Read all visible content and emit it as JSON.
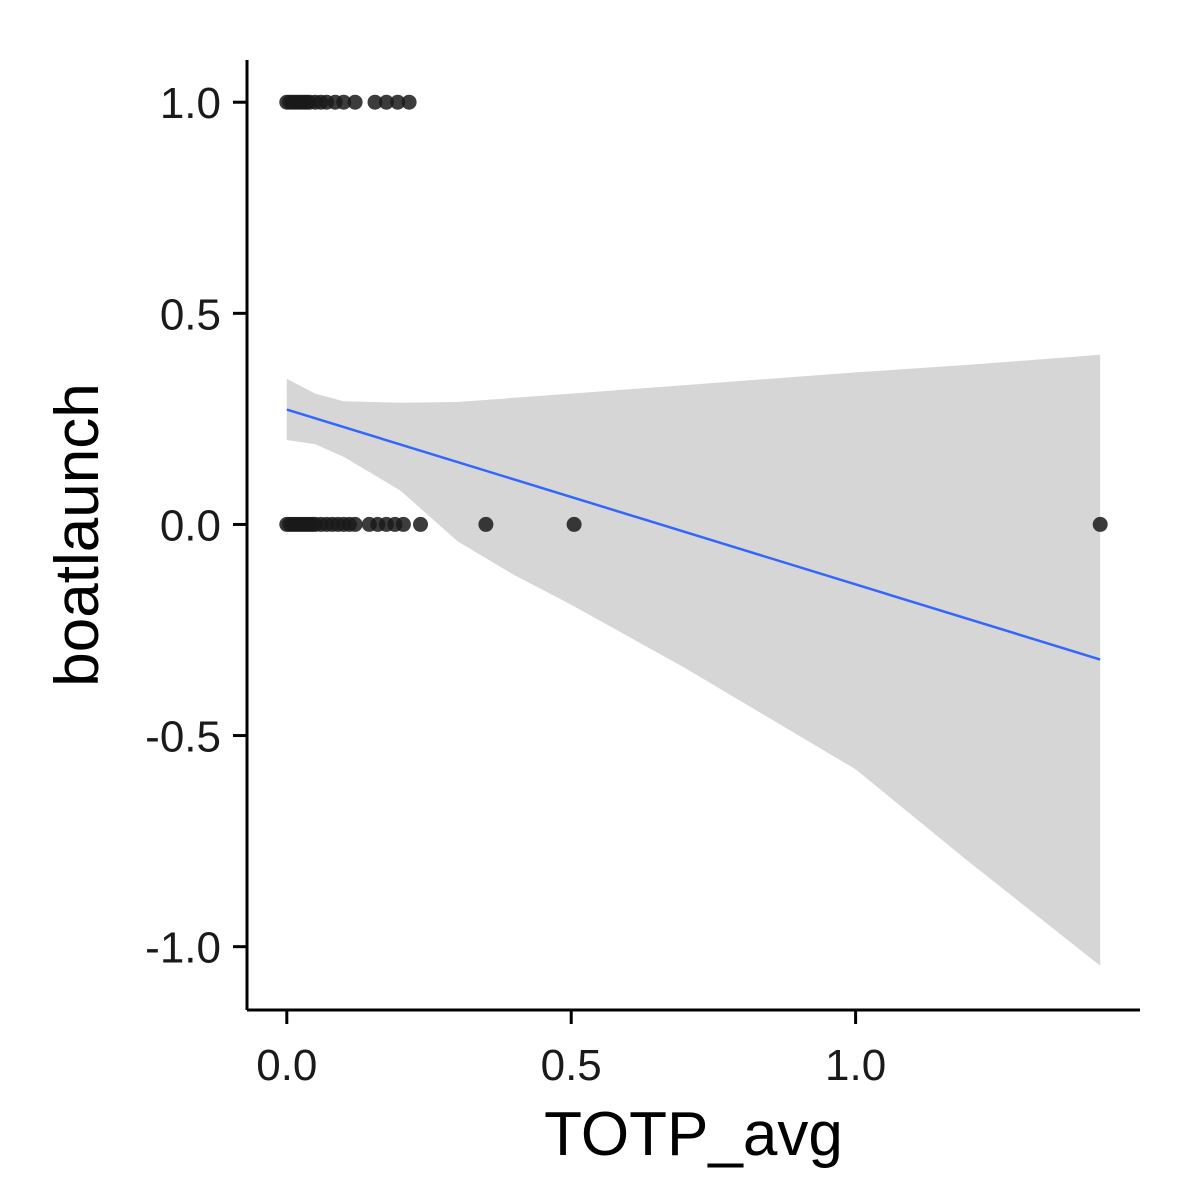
{
  "chart_data": {
    "type": "scatter",
    "title": "",
    "xlabel": "TOTP_avg",
    "ylabel": "boatlaunch",
    "xlim": [
      -0.07,
      1.5
    ],
    "ylim": [
      -1.15,
      1.1
    ],
    "x_ticks": [
      0.0,
      0.5,
      1.0
    ],
    "x_tick_labels": [
      "0.0",
      "0.5",
      "1.0"
    ],
    "y_ticks": [
      -1.0,
      -0.5,
      0.0,
      0.5,
      1.0
    ],
    "y_tick_labels": [
      "-1.0",
      "-0.5",
      "0.0",
      "0.5",
      "1.0"
    ],
    "grid": false,
    "colors": {
      "points": "#1a1a1a",
      "fit_line": "#3366ff",
      "ci_band": "#d6d6d6"
    },
    "points": [
      {
        "x": 0.0,
        "y": 1
      },
      {
        "x": 0.005,
        "y": 1
      },
      {
        "x": 0.01,
        "y": 1
      },
      {
        "x": 0.015,
        "y": 1
      },
      {
        "x": 0.02,
        "y": 1
      },
      {
        "x": 0.025,
        "y": 1
      },
      {
        "x": 0.03,
        "y": 1
      },
      {
        "x": 0.035,
        "y": 1
      },
      {
        "x": 0.04,
        "y": 1
      },
      {
        "x": 0.05,
        "y": 1
      },
      {
        "x": 0.06,
        "y": 1
      },
      {
        "x": 0.07,
        "y": 1
      },
      {
        "x": 0.085,
        "y": 1
      },
      {
        "x": 0.1,
        "y": 1
      },
      {
        "x": 0.12,
        "y": 1
      },
      {
        "x": 0.155,
        "y": 1
      },
      {
        "x": 0.175,
        "y": 1
      },
      {
        "x": 0.195,
        "y": 1
      },
      {
        "x": 0.215,
        "y": 1
      },
      {
        "x": 0.0,
        "y": 0
      },
      {
        "x": 0.005,
        "y": 0
      },
      {
        "x": 0.01,
        "y": 0
      },
      {
        "x": 0.015,
        "y": 0
      },
      {
        "x": 0.02,
        "y": 0
      },
      {
        "x": 0.025,
        "y": 0
      },
      {
        "x": 0.03,
        "y": 0
      },
      {
        "x": 0.035,
        "y": 0
      },
      {
        "x": 0.04,
        "y": 0
      },
      {
        "x": 0.045,
        "y": 0
      },
      {
        "x": 0.05,
        "y": 0
      },
      {
        "x": 0.06,
        "y": 0
      },
      {
        "x": 0.07,
        "y": 0
      },
      {
        "x": 0.08,
        "y": 0
      },
      {
        "x": 0.09,
        "y": 0
      },
      {
        "x": 0.1,
        "y": 0
      },
      {
        "x": 0.11,
        "y": 0
      },
      {
        "x": 0.12,
        "y": 0
      },
      {
        "x": 0.145,
        "y": 0
      },
      {
        "x": 0.16,
        "y": 0
      },
      {
        "x": 0.175,
        "y": 0
      },
      {
        "x": 0.19,
        "y": 0
      },
      {
        "x": 0.205,
        "y": 0
      },
      {
        "x": 0.235,
        "y": 0
      },
      {
        "x": 0.35,
        "y": 0
      },
      {
        "x": 0.505,
        "y": 0
      },
      {
        "x": 1.43,
        "y": 0
      }
    ],
    "fit": {
      "method": "linear",
      "line": [
        {
          "x": 0.0,
          "y": 0.272
        },
        {
          "x": 1.43,
          "y": -0.32
        }
      ],
      "ci_upper": [
        {
          "x": 0.0,
          "y": 0.345
        },
        {
          "x": 0.05,
          "y": 0.31
        },
        {
          "x": 0.1,
          "y": 0.292
        },
        {
          "x": 0.2,
          "y": 0.288
        },
        {
          "x": 0.3,
          "y": 0.29
        },
        {
          "x": 0.4,
          "y": 0.3
        },
        {
          "x": 0.5,
          "y": 0.31
        },
        {
          "x": 0.7,
          "y": 0.33
        },
        {
          "x": 1.0,
          "y": 0.36
        },
        {
          "x": 1.2,
          "y": 0.378
        },
        {
          "x": 1.43,
          "y": 0.402
        }
      ],
      "ci_lower": [
        {
          "x": 0.0,
          "y": 0.2
        },
        {
          "x": 0.05,
          "y": 0.19
        },
        {
          "x": 0.1,
          "y": 0.16
        },
        {
          "x": 0.2,
          "y": 0.08
        },
        {
          "x": 0.3,
          "y": -0.04
        },
        {
          "x": 0.4,
          "y": -0.12
        },
        {
          "x": 0.5,
          "y": -0.19
        },
        {
          "x": 0.7,
          "y": -0.34
        },
        {
          "x": 1.0,
          "y": -0.58
        },
        {
          "x": 1.2,
          "y": -0.8
        },
        {
          "x": 1.43,
          "y": -1.045
        }
      ]
    }
  }
}
